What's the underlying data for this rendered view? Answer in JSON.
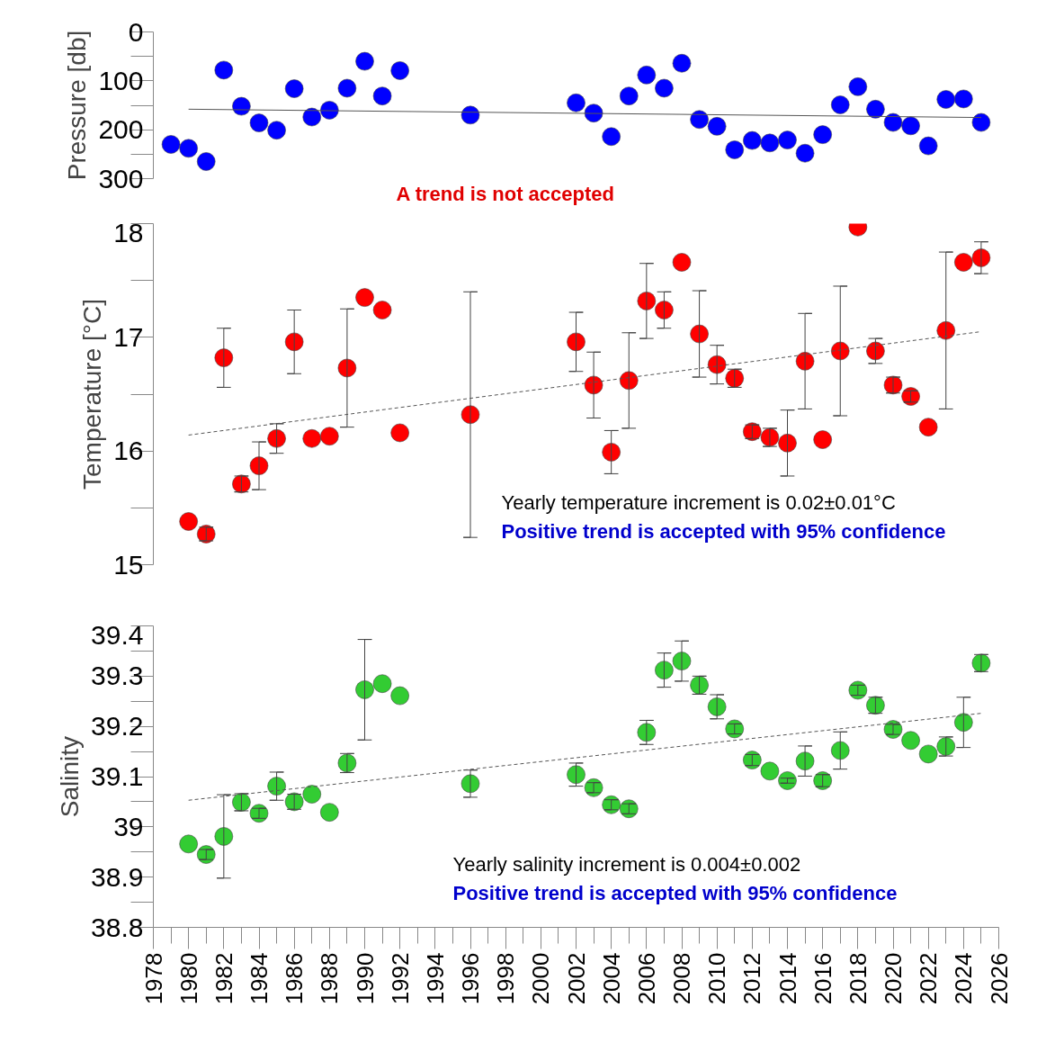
{
  "chart_data": [
    {
      "type": "scatter",
      "ylabel": "Pressure [db]",
      "xlim": [
        1978,
        2026
      ],
      "ylim": [
        300,
        0
      ],
      "yticks": [
        0,
        100,
        200,
        300
      ],
      "tick_labels": "y",
      "grid": false,
      "marker": "circle",
      "annotations": [
        "A trend is not accepted"
      ],
      "series": [
        {
          "color": "#0000ff",
          "x": [
            1979,
            1980,
            1981,
            1982,
            1983,
            1984,
            1985,
            1986,
            1987,
            1988,
            1989,
            1990,
            1991,
            1992,
            1996,
            2002,
            2003,
            2004,
            2005,
            2006,
            2007,
            2008,
            2009,
            2010,
            2011,
            2012,
            2013,
            2014,
            2015,
            2016,
            2017,
            2018,
            2019,
            2020,
            2021,
            2022,
            2023,
            2024,
            2025
          ],
          "values": [
            230,
            238,
            265,
            78,
            152,
            186,
            201,
            116,
            174,
            160,
            115,
            60,
            131,
            79,
            170,
            145,
            166,
            214,
            131,
            88,
            115,
            64,
            179,
            193,
            241,
            222,
            227,
            221,
            248,
            210,
            149,
            112,
            158,
            185,
            192,
            233,
            138,
            137,
            185
          ]
        },
        {
          "type": "line",
          "color": "#555555",
          "line_style": "solid",
          "marker": "none",
          "x": [
            1980,
            2025
          ],
          "values": [
            158,
            175
          ]
        }
      ]
    },
    {
      "type": "scatter",
      "ylabel": "Temperature [°C]",
      "xlim": [
        1978,
        2026
      ],
      "ylim": [
        15,
        18
      ],
      "yticks": [
        15,
        16,
        17,
        18
      ],
      "tick_labels": "y",
      "grid": false,
      "marker": "circle",
      "annotations": [
        "Yearly temperature increment is 0.02±0.01°C",
        "Positive trend is accepted with 95% confidence"
      ],
      "series": [
        {
          "color": "#ff0000",
          "x": [
            1980,
            1981,
            1982,
            1983,
            1984,
            1985,
            1986,
            1987,
            1988,
            1989,
            1990,
            1991,
            1992,
            1996,
            2002,
            2003,
            2004,
            2005,
            2006,
            2007,
            2008,
            2009,
            2010,
            2011,
            2012,
            2013,
            2014,
            2015,
            2016,
            2017,
            2018,
            2019,
            2020,
            2021,
            2022,
            2023,
            2024,
            2025
          ],
          "values": [
            15.38,
            15.27,
            16.82,
            15.71,
            15.87,
            16.11,
            16.96,
            16.11,
            16.13,
            16.73,
            17.35,
            17.24,
            16.16,
            16.32,
            16.96,
            16.58,
            15.99,
            16.62,
            17.32,
            17.24,
            17.66,
            17.03,
            16.76,
            16.64,
            16.17,
            16.12,
            16.07,
            16.79,
            16.1,
            16.88,
            17.97,
            16.88,
            16.58,
            16.48,
            16.21,
            17.06,
            17.66,
            17.7
          ],
          "errors": [
            null,
            0.06,
            0.26,
            0.07,
            0.21,
            0.13,
            0.28,
            null,
            null,
            0.52,
            null,
            null,
            null,
            1.08,
            0.26,
            0.29,
            0.19,
            0.42,
            0.33,
            0.16,
            null,
            0.38,
            0.17,
            0.08,
            0.06,
            0.08,
            0.29,
            0.42,
            null,
            0.57,
            null,
            0.11,
            0.07,
            0.05,
            null,
            0.69,
            null,
            0.14
          ]
        },
        {
          "type": "line",
          "color": "#555555",
          "line_style": "dashed",
          "marker": "none",
          "x": [
            1980,
            2025
          ],
          "values": [
            16.14,
            17.05
          ]
        }
      ]
    },
    {
      "type": "scatter",
      "ylabel": "Salinity",
      "xlim": [
        1978,
        2026
      ],
      "ylim": [
        38.8,
        39.4
      ],
      "xticks": [
        1978,
        1980,
        1982,
        1984,
        1986,
        1988,
        1990,
        1992,
        1994,
        1996,
        1998,
        2000,
        2002,
        2004,
        2006,
        2008,
        2010,
        2012,
        2014,
        2016,
        2018,
        2020,
        2022,
        2024,
        2026
      ],
      "yticks": [
        38.8,
        38.9,
        39,
        39.1,
        39.2,
        39.3,
        39.4
      ],
      "grid": false,
      "marker": "circle",
      "annotations": [
        "Yearly salinity increment is 0.004±0.002",
        "Positive trend is accepted with 95% confidence"
      ],
      "series": [
        {
          "color": "#33cc33",
          "x": [
            1980,
            1981,
            1982,
            1983,
            1984,
            1985,
            1986,
            1987,
            1988,
            1989,
            1990,
            1991,
            1992,
            1996,
            2002,
            2003,
            2004,
            2005,
            2006,
            2007,
            2008,
            2009,
            2010,
            2011,
            2012,
            2013,
            2014,
            2015,
            2016,
            2017,
            2018,
            2019,
            2020,
            2021,
            2022,
            2023,
            2024,
            2025
          ],
          "values": [
            38.966,
            38.945,
            38.981,
            39.049,
            39.027,
            39.081,
            39.05,
            39.065,
            39.029,
            39.127,
            39.273,
            39.285,
            39.261,
            39.086,
            39.104,
            39.078,
            39.044,
            39.036,
            39.188,
            39.312,
            39.33,
            39.282,
            39.239,
            39.195,
            39.133,
            39.111,
            39.092,
            39.131,
            39.092,
            39.152,
            39.272,
            39.242,
            39.194,
            39.172,
            39.145,
            39.16,
            39.208,
            39.326
          ],
          "errors": [
            null,
            0.01,
            0.083,
            0.017,
            0.01,
            0.028,
            0.015,
            null,
            null,
            0.019,
            0.1,
            null,
            null,
            0.027,
            0.023,
            0.01,
            0.01,
            0.01,
            0.024,
            0.034,
            0.04,
            0.018,
            0.024,
            0.01,
            0.011,
            null,
            0.005,
            0.03,
            0.012,
            0.037,
            0.01,
            0.016,
            0.01,
            null,
            null,
            0.019,
            0.05,
            0.017
          ]
        },
        {
          "type": "line",
          "color": "#555555",
          "line_style": "dashed",
          "marker": "none",
          "x": [
            1980,
            2025
          ],
          "values": [
            39.053,
            39.226
          ]
        }
      ]
    }
  ]
}
